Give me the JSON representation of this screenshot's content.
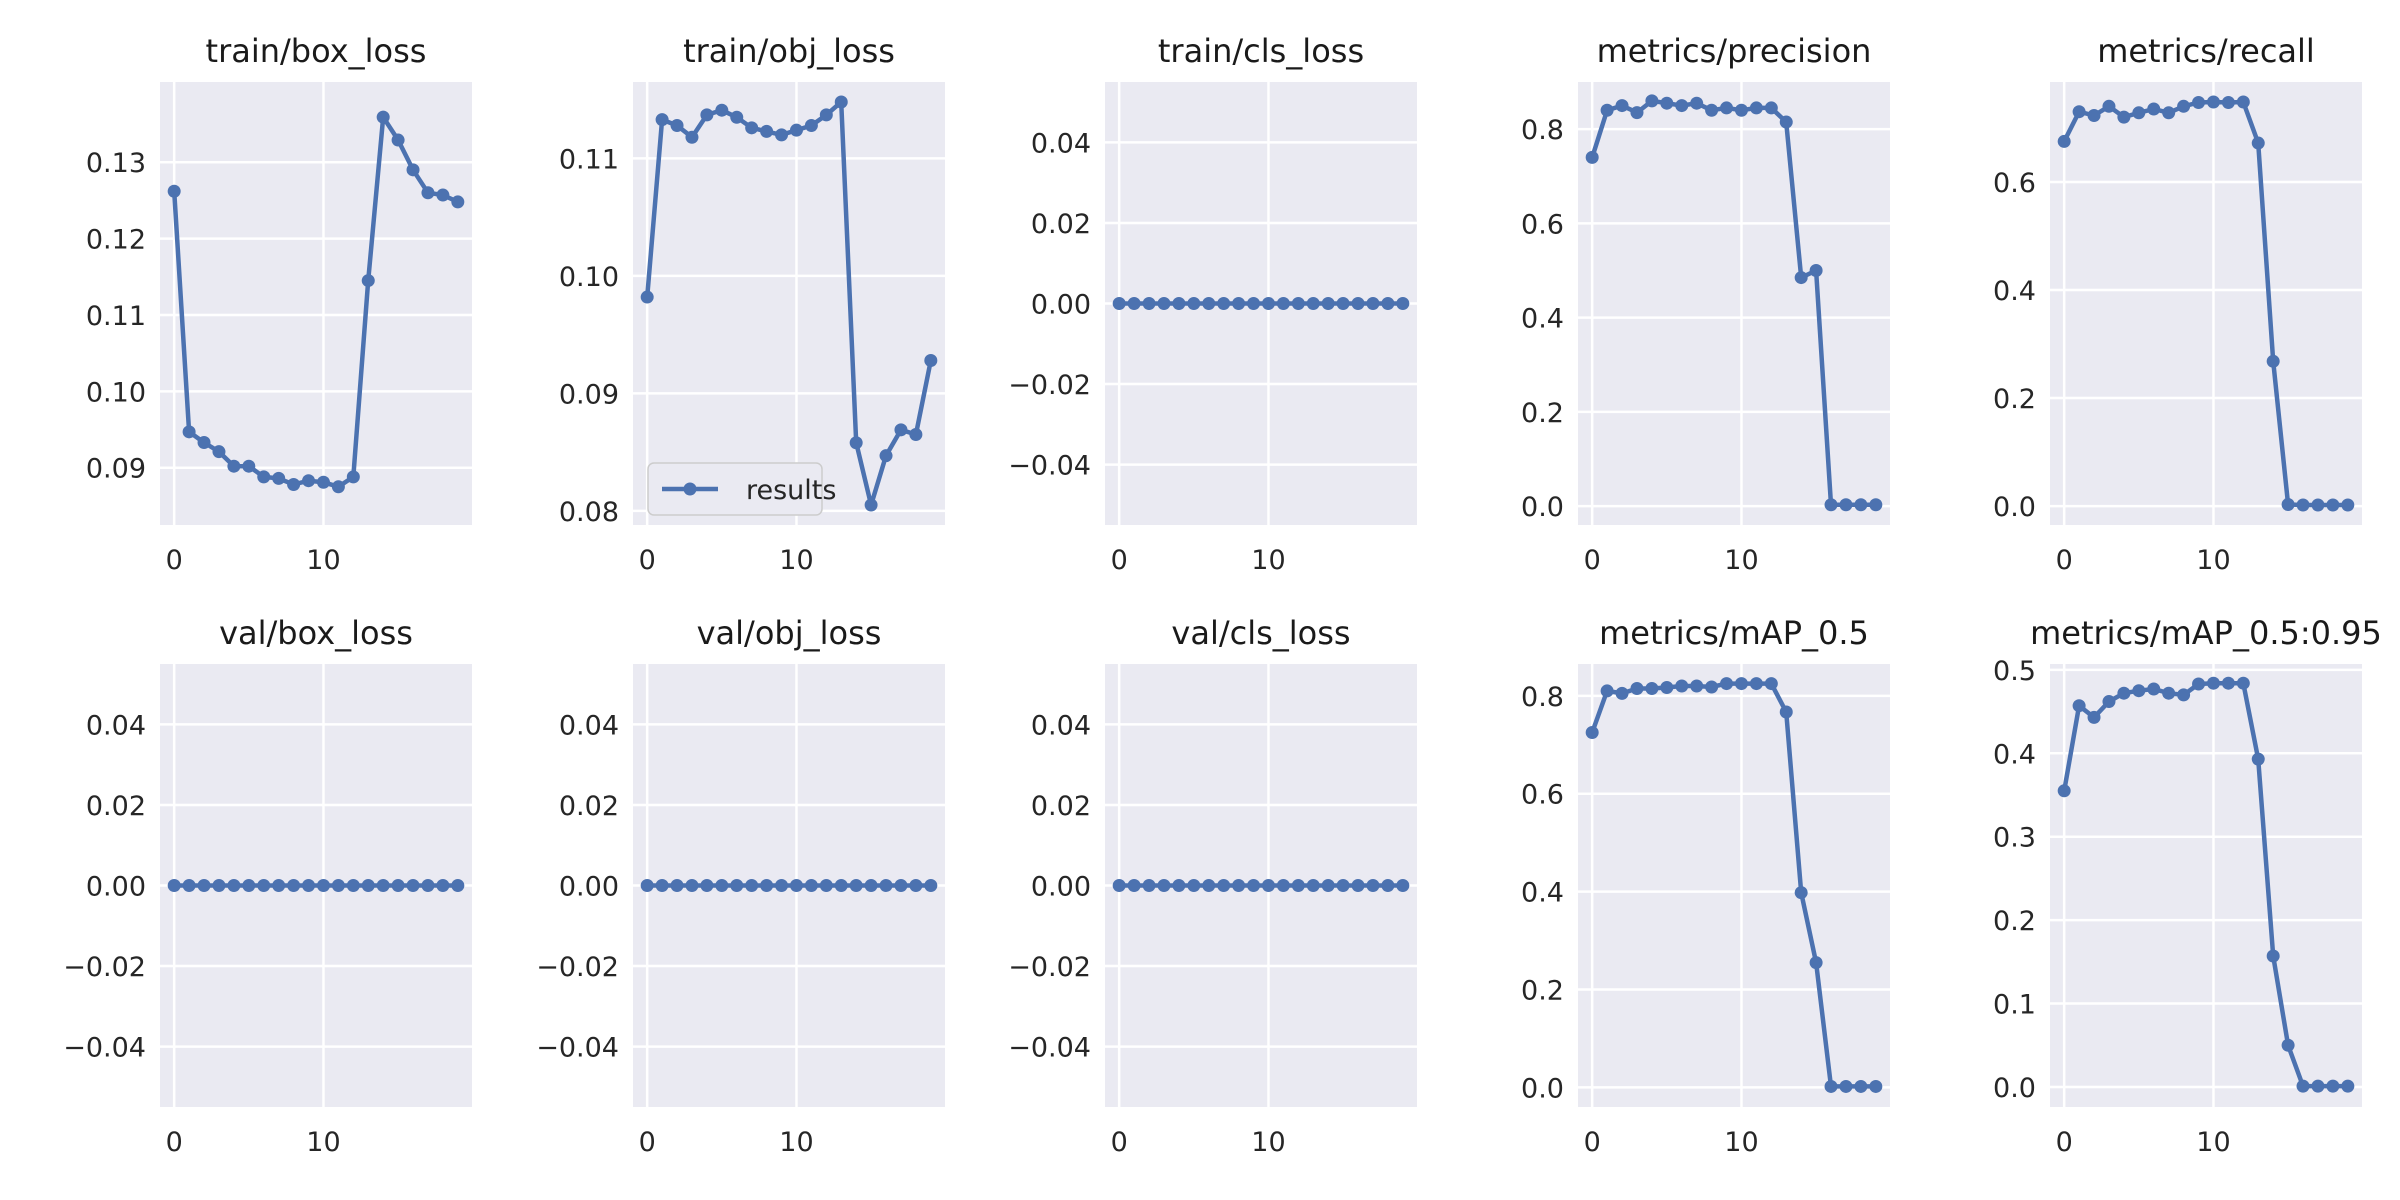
{
  "figure": {
    "plot_bg": "#eaeaf2",
    "grid_color": "#ffffff",
    "line_color": "#4c72b0",
    "text_color": "#262626"
  },
  "chart_data": [
    {
      "type": "line",
      "title": "train/box_loss",
      "x": [
        0,
        1,
        2,
        3,
        4,
        5,
        6,
        7,
        8,
        9,
        10,
        11,
        12,
        13,
        14,
        15,
        16,
        17,
        18,
        19
      ],
      "series": [
        {
          "name": "results",
          "values": [
            0.1262,
            0.0947,
            0.0933,
            0.0921,
            0.0902,
            0.0902,
            0.0888,
            0.0886,
            0.0878,
            0.0883,
            0.0881,
            0.0875,
            0.0888,
            0.1145,
            0.1359,
            0.1329,
            0.129,
            0.126,
            0.1257,
            0.1248
          ]
        }
      ],
      "xlim": [
        -0.95,
        19.95
      ],
      "ylim": [
        0.0825,
        0.1405
      ],
      "xticks": [
        0,
        10
      ],
      "xticklabels": [
        "0",
        "10"
      ],
      "yticks": [
        0.09,
        0.1,
        0.11,
        0.12,
        0.13
      ],
      "yticklabels": [
        "0.09",
        "0.10",
        "0.11",
        "0.12",
        "0.13"
      ],
      "grid": true,
      "legend": null
    },
    {
      "type": "line",
      "title": "train/obj_loss",
      "x": [
        0,
        1,
        2,
        3,
        4,
        5,
        6,
        7,
        8,
        9,
        10,
        11,
        12,
        13,
        14,
        15,
        16,
        17,
        18,
        19
      ],
      "series": [
        {
          "name": "results",
          "values": [
            0.0982,
            0.1133,
            0.1128,
            0.1118,
            0.1137,
            0.1141,
            0.1135,
            0.1126,
            0.1123,
            0.112,
            0.1124,
            0.1128,
            0.1137,
            0.1148,
            0.0858,
            0.0805,
            0.0847,
            0.0869,
            0.0865,
            0.0928
          ]
        }
      ],
      "xlim": [
        -0.95,
        19.95
      ],
      "ylim": [
        0.0788,
        0.1165
      ],
      "xticks": [
        0,
        10
      ],
      "xticklabels": [
        "0",
        "10"
      ],
      "yticks": [
        0.08,
        0.09,
        0.1,
        0.11
      ],
      "yticklabels": [
        "0.08",
        "0.09",
        "0.10",
        "0.11"
      ],
      "grid": true,
      "legend": "lower left"
    },
    {
      "type": "line",
      "title": "train/cls_loss",
      "x": [
        0,
        1,
        2,
        3,
        4,
        5,
        6,
        7,
        8,
        9,
        10,
        11,
        12,
        13,
        14,
        15,
        16,
        17,
        18,
        19
      ],
      "series": [
        {
          "name": "results",
          "values": [
            0,
            0,
            0,
            0,
            0,
            0,
            0,
            0,
            0,
            0,
            0,
            0,
            0,
            0,
            0,
            0,
            0,
            0,
            0,
            0
          ]
        }
      ],
      "xlim": [
        -0.95,
        19.95
      ],
      "ylim": [
        -0.055,
        0.055
      ],
      "xticks": [
        0,
        10
      ],
      "xticklabels": [
        "0",
        "10"
      ],
      "yticks": [
        -0.04,
        -0.02,
        0.0,
        0.02,
        0.04
      ],
      "yticklabels": [
        "−0.04",
        "−0.02",
        "0.00",
        "0.02",
        "0.04"
      ],
      "grid": true,
      "legend": null
    },
    {
      "type": "line",
      "title": "metrics/precision",
      "x": [
        0,
        1,
        2,
        3,
        4,
        5,
        6,
        7,
        8,
        9,
        10,
        11,
        12,
        13,
        14,
        15,
        16,
        17,
        18,
        19
      ],
      "series": [
        {
          "name": "results",
          "values": [
            0.74,
            0.84,
            0.85,
            0.835,
            0.86,
            0.855,
            0.85,
            0.855,
            0.84,
            0.845,
            0.84,
            0.845,
            0.845,
            0.815,
            0.485,
            0.5,
            0.003,
            0.003,
            0.003,
            0.003
          ]
        }
      ],
      "xlim": [
        -0.95,
        19.95
      ],
      "ylim": [
        -0.04,
        0.9
      ],
      "xticks": [
        0,
        10
      ],
      "xticklabels": [
        "0",
        "10"
      ],
      "yticks": [
        0.0,
        0.2,
        0.4,
        0.6,
        0.8
      ],
      "yticklabels": [
        "0.0",
        "0.2",
        "0.4",
        "0.6",
        "0.8"
      ],
      "grid": true,
      "legend": null
    },
    {
      "type": "line",
      "title": "metrics/recall",
      "x": [
        0,
        1,
        2,
        3,
        4,
        5,
        6,
        7,
        8,
        9,
        10,
        11,
        12,
        13,
        14,
        15,
        16,
        17,
        18,
        19
      ],
      "series": [
        {
          "name": "results",
          "values": [
            0.675,
            0.73,
            0.723,
            0.74,
            0.72,
            0.728,
            0.735,
            0.728,
            0.74,
            0.747,
            0.748,
            0.747,
            0.748,
            0.672,
            0.268,
            0.003,
            0.002,
            0.002,
            0.002,
            0.002
          ]
        }
      ],
      "xlim": [
        -0.95,
        19.95
      ],
      "ylim": [
        -0.035,
        0.785
      ],
      "xticks": [
        0,
        10
      ],
      "xticklabels": [
        "0",
        "10"
      ],
      "yticks": [
        0.0,
        0.2,
        0.4,
        0.6
      ],
      "yticklabels": [
        "0.0",
        "0.2",
        "0.4",
        "0.6"
      ],
      "grid": true,
      "legend": null
    },
    {
      "type": "line",
      "title": "val/box_loss",
      "x": [
        0,
        1,
        2,
        3,
        4,
        5,
        6,
        7,
        8,
        9,
        10,
        11,
        12,
        13,
        14,
        15,
        16,
        17,
        18,
        19
      ],
      "series": [
        {
          "name": "results",
          "values": [
            0,
            0,
            0,
            0,
            0,
            0,
            0,
            0,
            0,
            0,
            0,
            0,
            0,
            0,
            0,
            0,
            0,
            0,
            0,
            0
          ]
        }
      ],
      "xlim": [
        -0.95,
        19.95
      ],
      "ylim": [
        -0.055,
        0.055
      ],
      "xticks": [
        0,
        10
      ],
      "xticklabels": [
        "0",
        "10"
      ],
      "yticks": [
        -0.04,
        -0.02,
        0.0,
        0.02,
        0.04
      ],
      "yticklabels": [
        "−0.04",
        "−0.02",
        "0.00",
        "0.02",
        "0.04"
      ],
      "grid": true,
      "legend": null
    },
    {
      "type": "line",
      "title": "val/obj_loss",
      "x": [
        0,
        1,
        2,
        3,
        4,
        5,
        6,
        7,
        8,
        9,
        10,
        11,
        12,
        13,
        14,
        15,
        16,
        17,
        18,
        19
      ],
      "series": [
        {
          "name": "results",
          "values": [
            0,
            0,
            0,
            0,
            0,
            0,
            0,
            0,
            0,
            0,
            0,
            0,
            0,
            0,
            0,
            0,
            0,
            0,
            0,
            0
          ]
        }
      ],
      "xlim": [
        -0.95,
        19.95
      ],
      "ylim": [
        -0.055,
        0.055
      ],
      "xticks": [
        0,
        10
      ],
      "xticklabels": [
        "0",
        "10"
      ],
      "yticks": [
        -0.04,
        -0.02,
        0.0,
        0.02,
        0.04
      ],
      "yticklabels": [
        "−0.04",
        "−0.02",
        "0.00",
        "0.02",
        "0.04"
      ],
      "grid": true,
      "legend": null
    },
    {
      "type": "line",
      "title": "val/cls_loss",
      "x": [
        0,
        1,
        2,
        3,
        4,
        5,
        6,
        7,
        8,
        9,
        10,
        11,
        12,
        13,
        14,
        15,
        16,
        17,
        18,
        19
      ],
      "series": [
        {
          "name": "results",
          "values": [
            0,
            0,
            0,
            0,
            0,
            0,
            0,
            0,
            0,
            0,
            0,
            0,
            0,
            0,
            0,
            0,
            0,
            0,
            0,
            0
          ]
        }
      ],
      "xlim": [
        -0.95,
        19.95
      ],
      "ylim": [
        -0.055,
        0.055
      ],
      "xticks": [
        0,
        10
      ],
      "xticklabels": [
        "0",
        "10"
      ],
      "yticks": [
        -0.04,
        -0.02,
        0.0,
        0.02,
        0.04
      ],
      "yticklabels": [
        "−0.04",
        "−0.02",
        "0.00",
        "0.02",
        "0.04"
      ],
      "grid": true,
      "legend": null
    },
    {
      "type": "line",
      "title": "metrics/mAP_0.5",
      "x": [
        0,
        1,
        2,
        3,
        4,
        5,
        6,
        7,
        8,
        9,
        10,
        11,
        12,
        13,
        14,
        15,
        16,
        17,
        18,
        19
      ],
      "series": [
        {
          "name": "results",
          "values": [
            0.725,
            0.81,
            0.805,
            0.815,
            0.815,
            0.817,
            0.82,
            0.82,
            0.818,
            0.825,
            0.825,
            0.825,
            0.825,
            0.767,
            0.398,
            0.255,
            0.002,
            0.002,
            0.002,
            0.002
          ]
        }
      ],
      "xlim": [
        -0.95,
        19.95
      ],
      "ylim": [
        -0.04,
        0.865
      ],
      "xticks": [
        0,
        10
      ],
      "xticklabels": [
        "0",
        "10"
      ],
      "yticks": [
        0.0,
        0.2,
        0.4,
        0.6,
        0.8
      ],
      "yticklabels": [
        "0.0",
        "0.2",
        "0.4",
        "0.6",
        "0.8"
      ],
      "grid": true,
      "legend": null
    },
    {
      "type": "line",
      "title": "metrics/mAP_0.5:0.95",
      "x": [
        0,
        1,
        2,
        3,
        4,
        5,
        6,
        7,
        8,
        9,
        10,
        11,
        12,
        13,
        14,
        15,
        16,
        17,
        18,
        19
      ],
      "series": [
        {
          "name": "results",
          "values": [
            0.355,
            0.457,
            0.443,
            0.462,
            0.472,
            0.475,
            0.477,
            0.472,
            0.47,
            0.483,
            0.484,
            0.484,
            0.484,
            0.393,
            0.157,
            0.05,
            0.001,
            0.001,
            0.001,
            0.001
          ]
        }
      ],
      "xlim": [
        -0.95,
        19.95
      ],
      "ylim": [
        -0.024,
        0.507
      ],
      "xticks": [
        0,
        10
      ],
      "xticklabels": [
        "0",
        "10"
      ],
      "yticks": [
        0.0,
        0.1,
        0.2,
        0.3,
        0.4,
        0.5
      ],
      "yticklabels": [
        "0.0",
        "0.1",
        "0.2",
        "0.3",
        "0.4",
        "0.5"
      ],
      "grid": true,
      "legend": null
    }
  ]
}
